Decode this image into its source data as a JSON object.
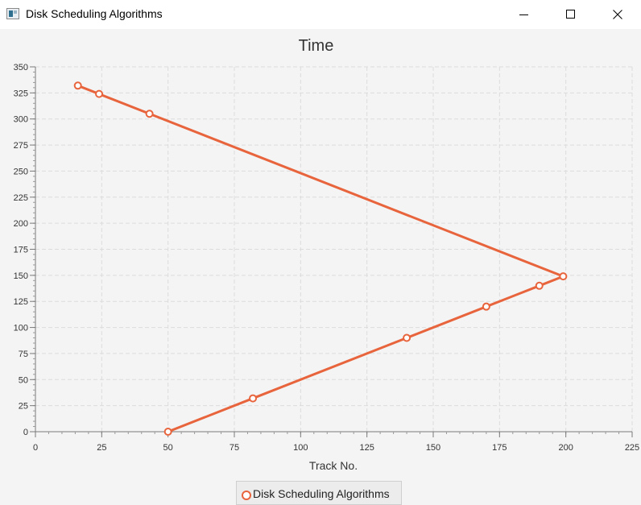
{
  "window": {
    "title": "Disk Scheduling Algorithms"
  },
  "chart_data": {
    "type": "line",
    "title": "Time",
    "xlabel": "Track No.",
    "ylabel": "",
    "xlim": [
      0,
      225
    ],
    "ylim": [
      0,
      350
    ],
    "x_ticks": [
      0,
      25,
      50,
      75,
      100,
      125,
      150,
      175,
      200,
      225
    ],
    "y_ticks": [
      0,
      25,
      50,
      75,
      100,
      125,
      150,
      175,
      200,
      225,
      250,
      275,
      300,
      325,
      350
    ],
    "grid": true,
    "legend_position": "bottom-center",
    "series": [
      {
        "name": "Disk Scheduling Algorithms",
        "color": "#e8643c",
        "points": [
          {
            "x": 50,
            "y": 0
          },
          {
            "x": 82,
            "y": 32
          },
          {
            "x": 140,
            "y": 90
          },
          {
            "x": 170,
            "y": 120
          },
          {
            "x": 190,
            "y": 140
          },
          {
            "x": 199,
            "y": 149
          },
          {
            "x": 43,
            "y": 305
          },
          {
            "x": 24,
            "y": 324
          },
          {
            "x": 16,
            "y": 332
          }
        ]
      }
    ]
  }
}
